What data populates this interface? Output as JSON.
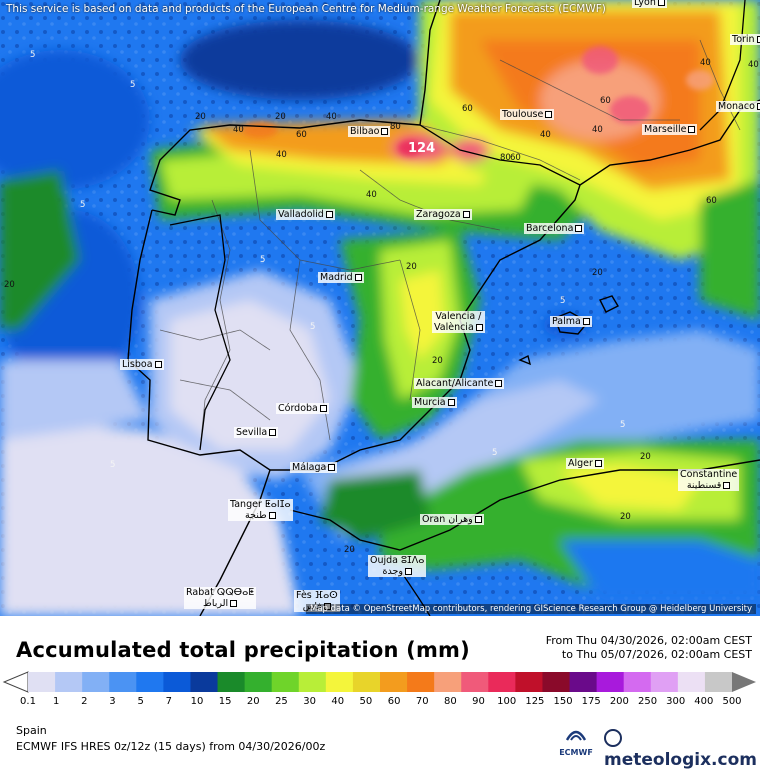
{
  "map": {
    "attribution_top": "This service is based on data and products of the European Centre for Medium-range Weather Forecasts (ECMWF)",
    "attribution_bottom": "Map data © OpenStreetMap contributors, rendering GIScience Research Group @ Heidelberg University",
    "cities": [
      {
        "name": "Lyon"
      },
      {
        "name": "Torin"
      },
      {
        "name": "Monaco"
      },
      {
        "name": "Marseille"
      },
      {
        "name": "Toulouse"
      },
      {
        "name": "Bilbao"
      },
      {
        "name": "Valladolid"
      },
      {
        "name": "Zaragoza"
      },
      {
        "name": "Barcelona"
      },
      {
        "name": "Madrid"
      },
      {
        "name": "Palma"
      },
      {
        "name": "Valencia /\nValència"
      },
      {
        "name": "Lisboa"
      },
      {
        "name": "Alacant/Alicante"
      },
      {
        "name": "Murcia"
      },
      {
        "name": "Córdoba"
      },
      {
        "name": "Sevilla"
      },
      {
        "name": "Málaga"
      },
      {
        "name": "Alger"
      },
      {
        "name": "Constantine\nقسنطينة"
      },
      {
        "name": "Tanger ⵟⴰⵏⵊⴰ\nطنجة"
      },
      {
        "name": "Oran وهران"
      },
      {
        "name": "Oujda ⵓⵊⴷⴰ\nوجدة"
      },
      {
        "name": "Rabat ⵕⵕⴱⴰⵟ\nالرباط"
      },
      {
        "name": "Fès ⴼⴰⵙ\nفاس"
      }
    ],
    "contour_labels": {
      "l5": "5",
      "l20": "20",
      "l40": "40",
      "l60": "60",
      "l80": "80",
      "peak": "124"
    }
  },
  "legend": {
    "title": "Accumulated total precipitation (mm)",
    "from": "From Thu 04/30/2026, 02:00am CEST",
    "to": "to Thu 05/07/2026, 02:00am CEST",
    "ticks": [
      "0.1",
      "1",
      "2",
      "3",
      "5",
      "7",
      "10",
      "15",
      "20",
      "25",
      "30",
      "40",
      "50",
      "60",
      "70",
      "80",
      "90",
      "100",
      "125",
      "150",
      "175",
      "200",
      "250",
      "300",
      "400",
      "500"
    ],
    "colors": [
      "#e0e0f3",
      "#b4c8f5",
      "#82b0f5",
      "#4b93f3",
      "#1f78f0",
      "#0b5ad8",
      "#0a3a9c",
      "#1a8a2a",
      "#34b02e",
      "#6fd42a",
      "#b8ee38",
      "#f4f53b",
      "#e8d42a",
      "#f39c1e",
      "#f47a1a",
      "#f7a07a",
      "#f05a7a",
      "#ea2a5a",
      "#c0102a",
      "#8a0a2a",
      "#6a0a8a",
      "#a81adc",
      "#d46af0",
      "#e0a0f4",
      "#ece0f4",
      "#c8c8c8"
    ],
    "region": "Spain",
    "model": "ECMWF IFS HRES 0z/12z (15 days) from 04/30/2026/00z",
    "ecmwf_label": "ECMWF",
    "brand": "meteologix.com"
  }
}
